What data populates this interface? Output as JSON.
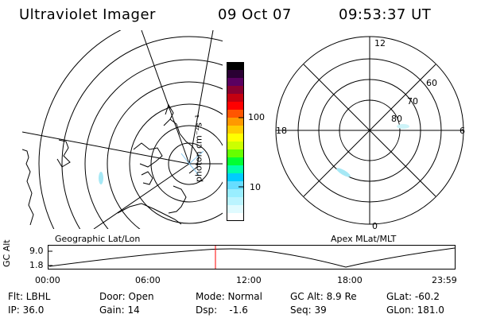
{
  "header": {
    "title": "Ultraviolet Imager",
    "date": "09 Oct 07",
    "time": "09:53:37 UT"
  },
  "colorbar": {
    "unit_label": "photon cm⁻²s⁻¹",
    "ticks": [
      "100",
      "10"
    ],
    "colors": [
      "#000000",
      "#2a0033",
      "#5a0060",
      "#8a0030",
      "#c40010",
      "#ff0000",
      "#ff5500",
      "#ff9900",
      "#ffcc00",
      "#ffff00",
      "#ccff00",
      "#66ff00",
      "#00ff33",
      "#00ffaa",
      "#00ccff",
      "#66ddff",
      "#99eeff",
      "#bbf4ff",
      "#e0fbff",
      "#ffffff"
    ]
  },
  "left_map": {
    "label": "Geographic Lat/Lon"
  },
  "right_map": {
    "label": "Apex MLat/MLT",
    "mlt_labels": {
      "top": "12",
      "left": "18",
      "right": "6",
      "bottom": "0"
    },
    "lat_labels": [
      "60",
      "70",
      "80"
    ]
  },
  "altitude_plot": {
    "ylabel": "GC Alt",
    "yticks": [
      "9.0",
      "1.8"
    ],
    "xticks": [
      "00:00",
      "06:00",
      "12:00",
      "18:00",
      "23:59"
    ],
    "cursor_color": "#ff0000"
  },
  "status": {
    "flt": "Flt: LBHL",
    "door": "Door: Open",
    "mode": "Mode: Normal",
    "gc_alt": "GC Alt: 8.9 Re",
    "glat": "GLat: -60.2",
    "ip": "IP: 36.0",
    "gain": "Gain: 14",
    "dsp": "Dsp:    -1.6",
    "seq": "Seq: 39",
    "glon": "GLon: 181.0"
  }
}
